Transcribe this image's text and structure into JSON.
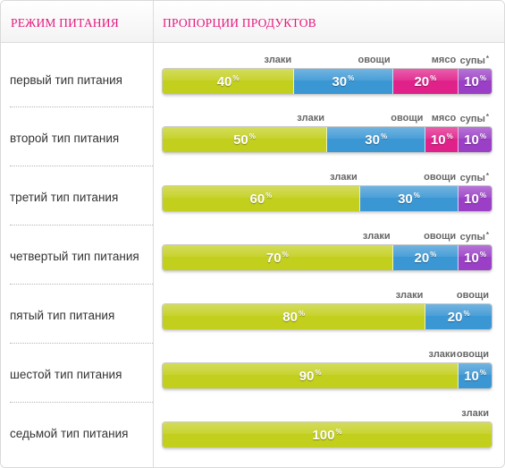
{
  "header": {
    "left_title": "РЕЖИМ ПИТАНИЯ",
    "right_title": "ПРОПОРЦИИ ПРОДУКТОВ"
  },
  "colors": {
    "grains": "#c3cf1d",
    "vegetables": "#3b97d4",
    "meat": "#e0218a",
    "soups": "#9a3fc6"
  },
  "chart_data": {
    "type": "bar",
    "orientation": "horizontal-stacked-100",
    "categories": [
      "первый тип питания",
      "второй тип питания",
      "третий тип питания",
      "четвертый тип питания",
      "пятый тип питания",
      "шестой тип питания",
      "седьмой тип питания"
    ],
    "series": [
      {
        "name": "злаки",
        "color": "#c3cf1d",
        "values": [
          40,
          50,
          60,
          70,
          80,
          90,
          100
        ]
      },
      {
        "name": "овощи",
        "color": "#3b97d4",
        "values": [
          30,
          30,
          30,
          20,
          20,
          10,
          0
        ]
      },
      {
        "name": "мясо",
        "color": "#e0218a",
        "values": [
          20,
          10,
          0,
          0,
          0,
          0,
          0
        ]
      },
      {
        "name": "супы",
        "color": "#9a3fc6",
        "values": [
          10,
          10,
          10,
          10,
          0,
          0,
          0
        ]
      }
    ],
    "footnote_mark_series": "супы",
    "footnote_mark": "*",
    "value_suffix": "%",
    "xlim": [
      0,
      100
    ]
  }
}
